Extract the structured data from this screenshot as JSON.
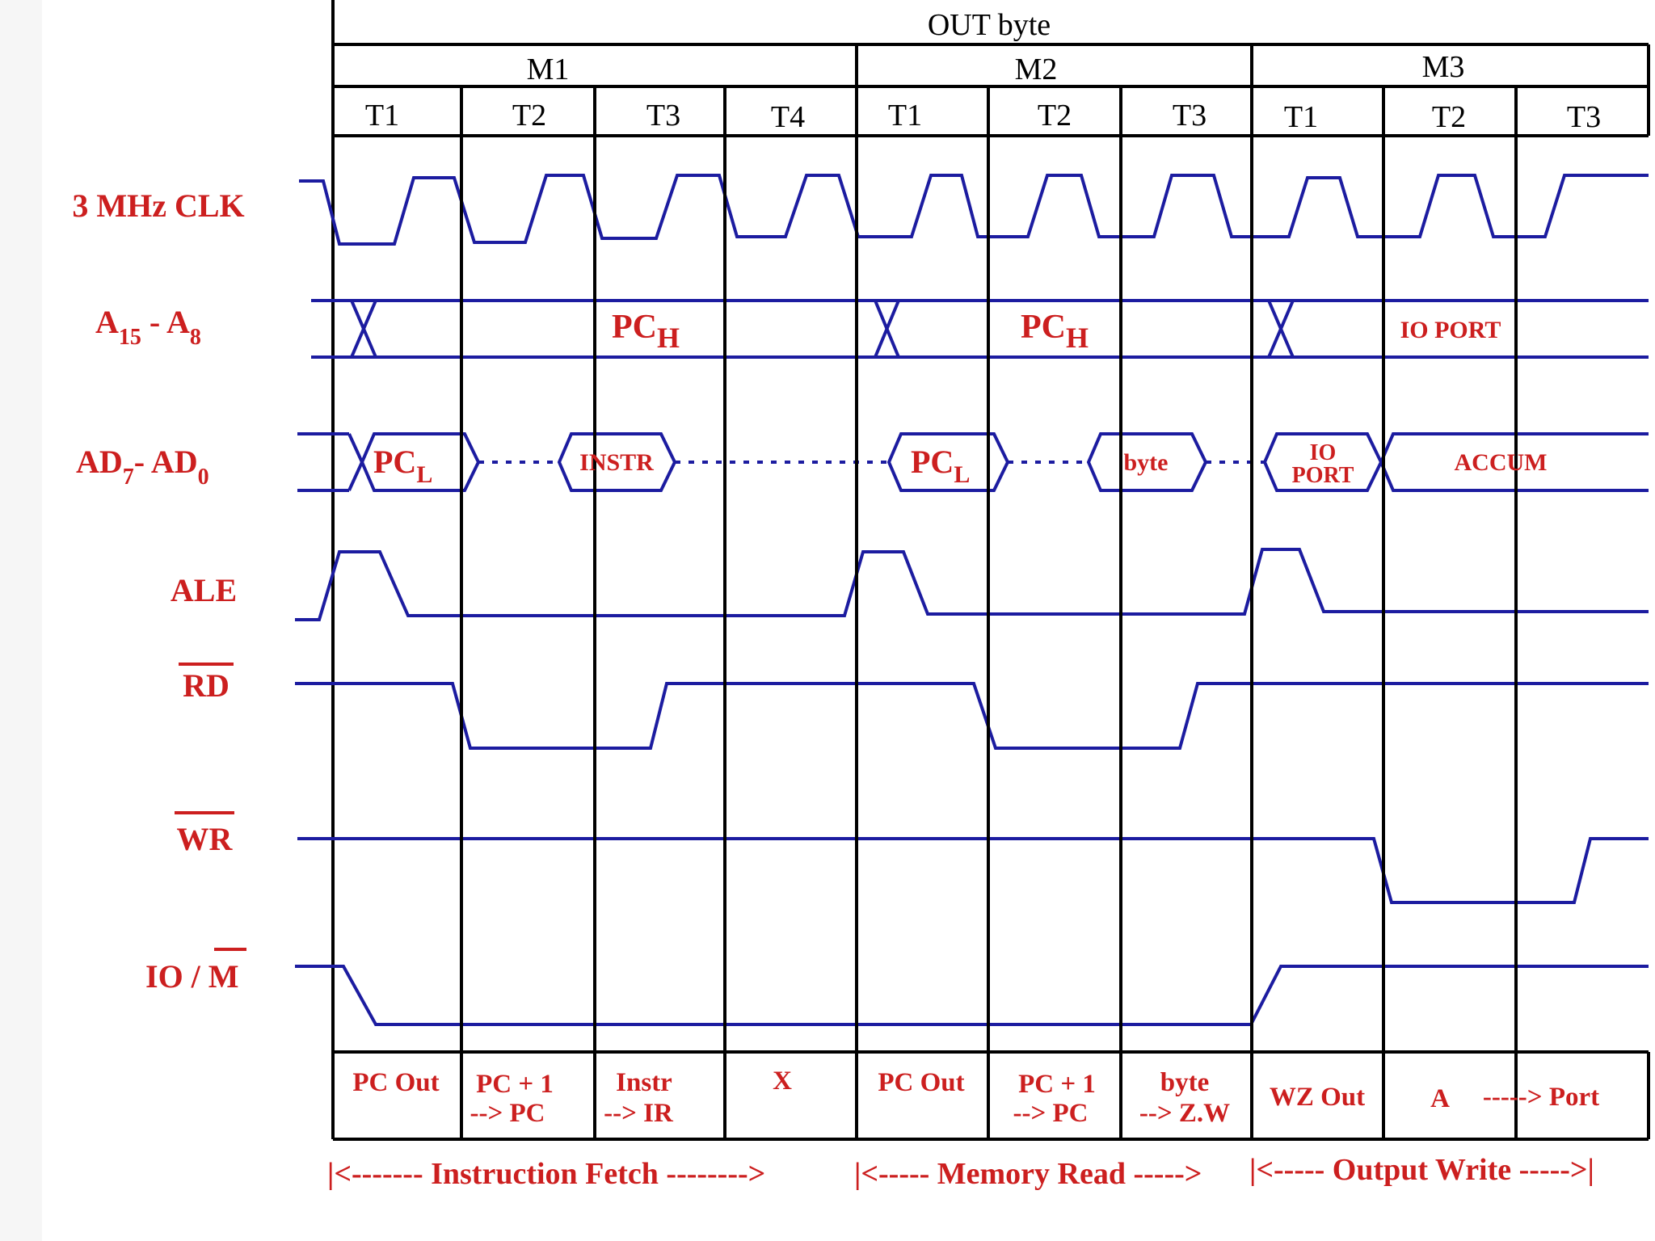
{
  "title": "OUT byte",
  "machine_cycles": [
    {
      "label": "M1",
      "states": [
        "T1",
        "T2",
        "T3",
        "T4"
      ]
    },
    {
      "label": "M2",
      "states": [
        "T1",
        "T2",
        "T3"
      ]
    },
    {
      "label": "M3",
      "states": [
        "T1",
        "T2",
        "T3"
      ]
    }
  ],
  "signals": {
    "clk": {
      "label": "3 MHz CLK"
    },
    "addr_high": {
      "base1": "A",
      "sub1": "15",
      "mid": " - A",
      "sub2": "8"
    },
    "addr_low": {
      "base1": "AD",
      "sub1": "7",
      "mid": "- AD",
      "sub2": "0"
    },
    "ale": {
      "label": "ALE"
    },
    "rd": {
      "label": "RD",
      "active_low": true
    },
    "wr": {
      "label": "WR",
      "active_low": true
    },
    "iom": {
      "prefix": "IO / ",
      "overbar_part": "M"
    }
  },
  "bus_values": {
    "addr_high": [
      {
        "base": "PC",
        "sub": "H"
      },
      {
        "base": "PC",
        "sub": "H"
      },
      {
        "base": "IO PORT",
        "sub": ""
      }
    ],
    "addr_low": {
      "pcl_1": {
        "base": "PC",
        "sub": "L"
      },
      "instr": "INSTR",
      "pcl_2": {
        "base": "PC",
        "sub": "L"
      },
      "byte": "byte",
      "io_port": [
        "IO",
        "PORT"
      ],
      "accum": "ACCUM"
    }
  },
  "actions": [
    [
      "PC Out"
    ],
    [
      "PC + 1",
      "--> PC"
    ],
    [
      "Instr",
      "--> IR"
    ],
    [
      "X"
    ],
    [
      "PC Out"
    ],
    [
      "PC + 1",
      "--> PC"
    ],
    [
      "byte",
      "--> Z.W"
    ],
    [
      "WZ Out"
    ],
    [
      "A",
      "-----> Port"
    ]
  ],
  "phases": [
    "|<------- Instruction Fetch -------->",
    "|<----- Memory Read ----->",
    "|<----- Output Write ----->|"
  ],
  "colors": {
    "wave": "#1c1ca0",
    "label": "#cc1f1f",
    "grid": "#000000"
  }
}
